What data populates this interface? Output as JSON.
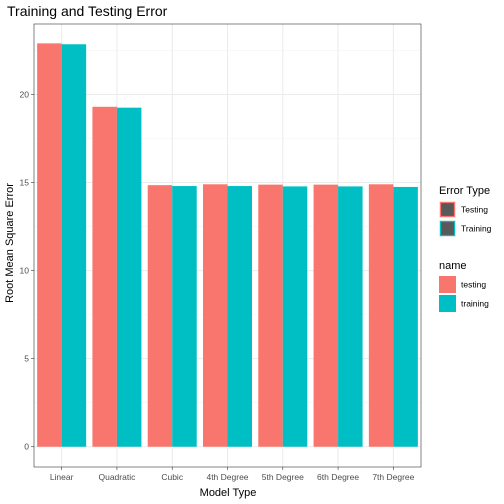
{
  "chart_data": {
    "type": "bar",
    "title": "Training and Testing Error",
    "xlabel": "Model Type",
    "ylabel": "Root Mean Square Error",
    "categories": [
      "Linear",
      "Quadratic",
      "Cubic",
      "4th Degree",
      "5th Degree",
      "6th Degree",
      "7th Degree"
    ],
    "series": [
      {
        "name": "testing",
        "values": [
          22.9,
          19.3,
          14.85,
          14.9,
          14.88,
          14.88,
          14.9
        ],
        "color": "#F8766D"
      },
      {
        "name": "training",
        "values": [
          22.85,
          19.25,
          14.8,
          14.8,
          14.78,
          14.78,
          14.75
        ],
        "color": "#00BFC4"
      }
    ],
    "ylim": [
      -1.15,
      24.0
    ],
    "yticks": [
      0,
      5,
      10,
      15,
      20
    ],
    "grid": true,
    "legend_placement": "right",
    "legends": [
      {
        "title": "Error Type",
        "entries": [
          {
            "label": "Testing",
            "color": "#595959",
            "outline": "#F8766D"
          },
          {
            "label": "Training",
            "color": "#595959",
            "outline": "#00BFC4"
          }
        ]
      },
      {
        "title": "name",
        "entries": [
          {
            "label": "testing",
            "color": "#F8766D"
          },
          {
            "label": "training",
            "color": "#00BFC4"
          }
        ]
      }
    ]
  }
}
